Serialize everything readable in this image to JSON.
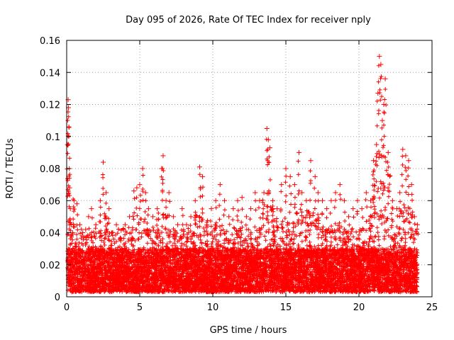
{
  "chart_data": {
    "type": "scatter",
    "title": "Day 095 of 2026, Rate Of TEC Index for receiver nply",
    "xlabel": "GPS time / hours",
    "ylabel": "ROTI / TECUs",
    "xlim": [
      0,
      25
    ],
    "ylim": [
      0,
      0.16
    ],
    "xticks": [
      "0",
      "5",
      "10",
      "15",
      "20",
      "25"
    ],
    "yticks": [
      "0",
      "0.02",
      "0.04",
      "0.06",
      "0.08",
      "0.1",
      "0.12",
      "0.14",
      "0.16"
    ],
    "xtick_values": [
      0,
      5,
      10,
      15,
      20,
      25
    ],
    "ytick_values": [
      0,
      0.02,
      0.04,
      0.06,
      0.08,
      0.1,
      0.12,
      0.14,
      0.16
    ],
    "grid": true,
    "marker": "plus",
    "color": "#ff0000",
    "series": [
      {
        "x": [
          0.05,
          0.1,
          0.12,
          0.15,
          0.18,
          0.2,
          0.25,
          0.3,
          0.4,
          0.5,
          0.7,
          0.9,
          1.1,
          1.3,
          1.5,
          1.7,
          2.0,
          2.3,
          2.5,
          2.7,
          2.9,
          3.1,
          3.4,
          3.7,
          4.0,
          4.3,
          4.6,
          4.8,
          5.0,
          5.2,
          5.4,
          5.6,
          5.9,
          6.2,
          6.5,
          6.6,
          6.8,
          7.0,
          7.3,
          7.6,
          7.9,
          8.2,
          8.5,
          8.8,
          9.1,
          9.3,
          9.6,
          9.9,
          10.2,
          10.5,
          10.8,
          11.1,
          11.4,
          11.7,
          12.0,
          12.3,
          12.6,
          12.9,
          13.2,
          13.5,
          13.7,
          13.8,
          13.9,
          14.1,
          14.4,
          14.7,
          15.0,
          15.3,
          15.6,
          15.9,
          16.1,
          16.4,
          16.7,
          17.0,
          17.2,
          17.5,
          17.8,
          18.1,
          18.4,
          18.7,
          19.0,
          19.3,
          19.6,
          19.9,
          20.2,
          20.5,
          20.8,
          21.0,
          21.2,
          21.3,
          21.4,
          21.5,
          21.6,
          21.7,
          21.8,
          22.0,
          22.3,
          22.6,
          22.8,
          23.0,
          23.2,
          23.4,
          23.6,
          23.8,
          24.0
        ],
        "y": [
          0.095,
          0.123,
          0.118,
          0.106,
          0.08,
          0.068,
          0.055,
          0.045,
          0.04,
          0.06,
          0.058,
          0.045,
          0.04,
          0.042,
          0.05,
          0.055,
          0.045,
          0.06,
          0.084,
          0.065,
          0.055,
          0.04,
          0.045,
          0.035,
          0.045,
          0.05,
          0.066,
          0.068,
          0.07,
          0.08,
          0.065,
          0.055,
          0.05,
          0.055,
          0.08,
          0.088,
          0.06,
          0.065,
          0.05,
          0.045,
          0.055,
          0.045,
          0.05,
          0.06,
          0.081,
          0.075,
          0.045,
          0.055,
          0.06,
          0.07,
          0.06,
          0.05,
          0.055,
          0.06,
          0.062,
          0.05,
          0.055,
          0.065,
          0.06,
          0.065,
          0.105,
          0.098,
          0.093,
          0.06,
          0.055,
          0.07,
          0.08,
          0.075,
          0.07,
          0.09,
          0.065,
          0.06,
          0.085,
          0.075,
          0.065,
          0.06,
          0.055,
          0.06,
          0.065,
          0.07,
          0.06,
          0.05,
          0.055,
          0.06,
          0.055,
          0.065,
          0.06,
          0.085,
          0.095,
          0.127,
          0.15,
          0.145,
          0.11,
          0.12,
          0.136,
          0.09,
          0.06,
          0.055,
          0.065,
          0.092,
          0.088,
          0.085,
          0.07,
          0.05,
          0.045
        ]
      }
    ],
    "baseline_band": {
      "y_min": 0.003,
      "y_max": 0.03
    }
  }
}
